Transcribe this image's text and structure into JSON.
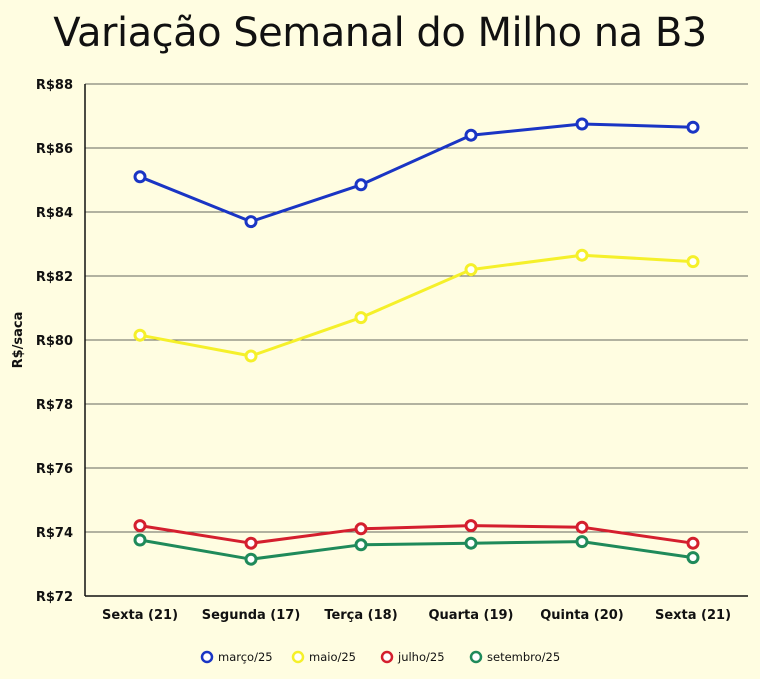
{
  "chart_data": {
    "type": "line",
    "title": "Variação Semanal do Milho na B3",
    "xlabel": "",
    "ylabel": "R$/saca",
    "categories": [
      "Sexta (21)",
      "Segunda (17)",
      "Terça (18)",
      "Quarta (19)",
      "Quinta (20)",
      "Sexta (21)"
    ],
    "ylim": [
      72,
      88
    ],
    "yticks": [
      72,
      74,
      76,
      78,
      80,
      82,
      84,
      86,
      88
    ],
    "ytick_labels": [
      "R$72",
      "R$74",
      "R$76",
      "R$78",
      "R$80",
      "R$82",
      "R$84",
      "R$86",
      "R$88"
    ],
    "grid": true,
    "legend_position": "bottom",
    "background": "#fffde1",
    "series": [
      {
        "name": "março/25",
        "color": "#1a35c4",
        "values": [
          85.1,
          83.7,
          84.85,
          86.4,
          86.75,
          86.65
        ]
      },
      {
        "name": "maio/25",
        "color": "#f5f02a",
        "values": [
          80.15,
          79.5,
          80.7,
          82.2,
          82.65,
          82.45
        ]
      },
      {
        "name": "julho/25",
        "color": "#d41f2e",
        "values": [
          74.2,
          73.65,
          74.1,
          74.2,
          74.15,
          73.65
        ]
      },
      {
        "name": "setembro/25",
        "color": "#1f8a5a",
        "values": [
          73.75,
          73.15,
          73.6,
          73.65,
          73.7,
          73.2
        ]
      }
    ]
  }
}
